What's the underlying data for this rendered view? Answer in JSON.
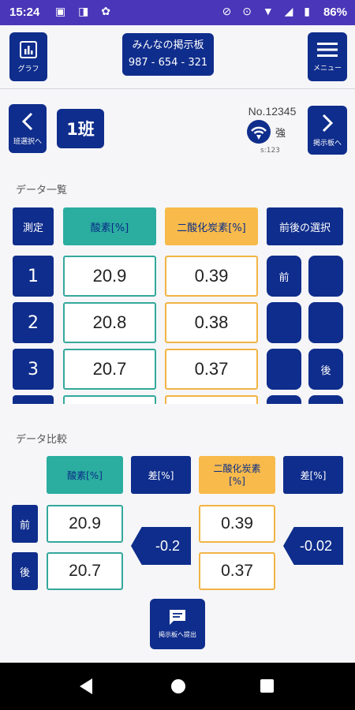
{
  "status": {
    "time": "15:24",
    "battery": "86%",
    "left_icons": "▣ ◨ ✿",
    "right_icons": "⊘ ⊙ ▼ ◢ ▮"
  },
  "header": {
    "graph_label": "グラフ",
    "title_line1": "みんなの掲示板",
    "title_line2": "987 - 654 - 321",
    "menu_label": "メニュー"
  },
  "subheader": {
    "class_select_label": "班選択へ",
    "class_name": "1班",
    "serial": "No.12345",
    "signal_strength": "強",
    "s_value": "s:123",
    "to_board_label": "掲示板へ"
  },
  "data_list": {
    "section_title": "データ一覧",
    "headers": {
      "measure": "測定",
      "o2": "酸素[%]",
      "co2": "二酸化炭素[%]",
      "select": "前後の選択"
    },
    "rows": [
      {
        "num": "1",
        "o2": "20.9",
        "co2": "0.39",
        "before": "前",
        "after": ""
      },
      {
        "num": "2",
        "o2": "20.8",
        "co2": "0.38",
        "before": "",
        "after": ""
      },
      {
        "num": "3",
        "o2": "20.7",
        "co2": "0.37",
        "before": "",
        "after": "後"
      }
    ]
  },
  "compare": {
    "section_title": "データ比較",
    "o2_header": "酸素[%]",
    "diff_header": "差[%]",
    "co2_header": "二酸化炭素\n[%]",
    "co2_diff_header": "差[%]",
    "before_label": "前",
    "after_label": "後",
    "o2_before": "20.9",
    "o2_after": "20.7",
    "o2_diff": "-0.2",
    "co2_before": "0.39",
    "co2_after": "0.37",
    "co2_diff": "-0.02",
    "submit_label": "掲示板へ提出"
  },
  "colors": {
    "navy": "#0f2d8c",
    "teal": "#2bada0",
    "orange": "#f7ba4b",
    "statusbar": "#4a36b8"
  },
  "icons": {
    "graph": "bar-chart-icon",
    "menu": "hamburger-menu-icon",
    "prev": "chevron-left-icon",
    "next": "chevron-right-icon",
    "signal": "wifi-signal-icon",
    "submit": "message-icon"
  }
}
